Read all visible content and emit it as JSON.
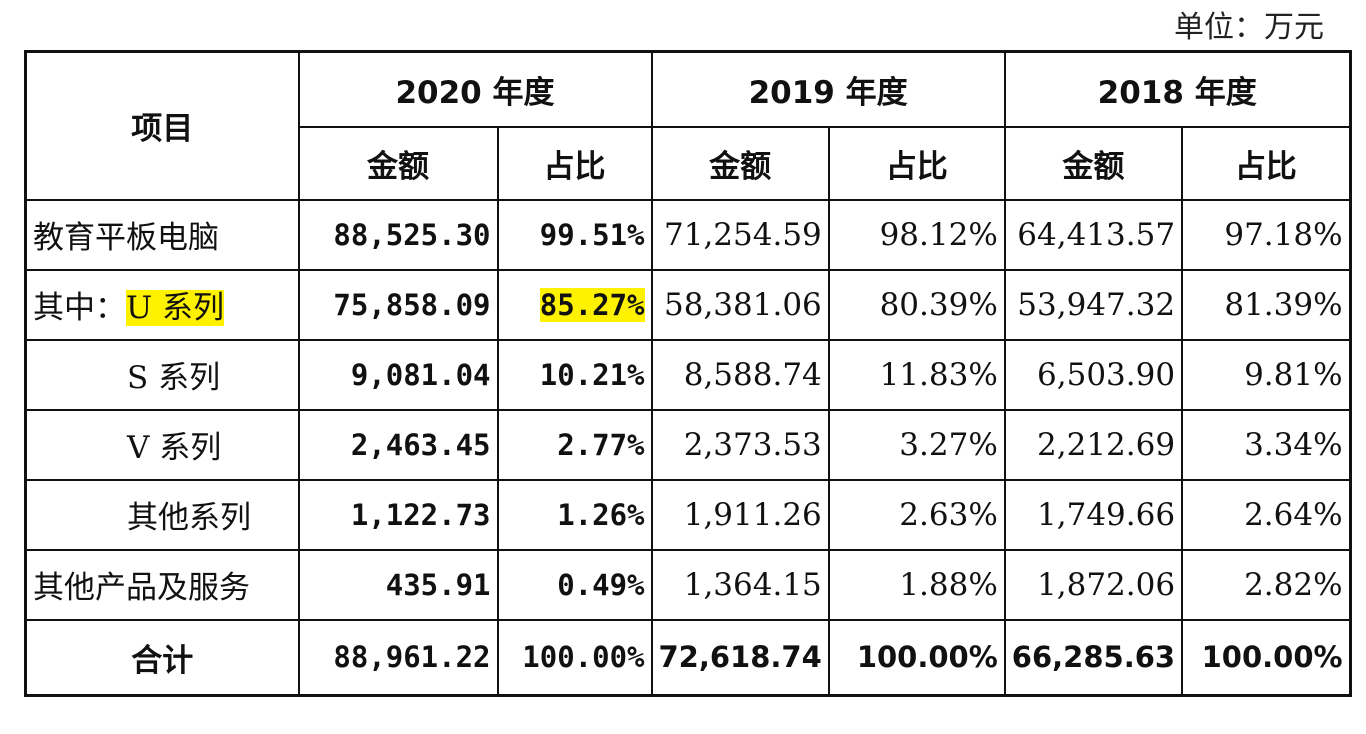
{
  "unit_label": "单位：万元",
  "header": {
    "item": "项目",
    "years": [
      "2020 年度",
      "2019 年度",
      "2018 年度"
    ],
    "amount": "金额",
    "ratio": "占比"
  },
  "rows": [
    {
      "name": "教育平板电脑",
      "v2020": "88,525.30",
      "p2020": "99.51%",
      "v2019": "71,254.59",
      "p2019": "98.12%",
      "v2018": "64,413.57",
      "p2018": "97.18%"
    },
    {
      "name_prefix": "其中：",
      "name": "U 系列",
      "v2020": "75,858.09",
      "p2020": "85.27%",
      "v2019": "58,381.06",
      "p2019": "80.39%",
      "v2018": "53,947.32",
      "p2018": "81.39%"
    },
    {
      "name": "S 系列",
      "v2020": "9,081.04",
      "p2020": "10.21%",
      "v2019": "8,588.74",
      "p2019": "11.83%",
      "v2018": "6,503.90",
      "p2018": "9.81%"
    },
    {
      "name": "V 系列",
      "v2020": "2,463.45",
      "p2020": "2.77%",
      "v2019": "2,373.53",
      "p2019": "3.27%",
      "v2018": "2,212.69",
      "p2018": "3.34%"
    },
    {
      "name": "其他系列",
      "v2020": "1,122.73",
      "p2020": "1.26%",
      "v2019": "1,911.26",
      "p2019": "2.63%",
      "v2018": "1,749.66",
      "p2018": "2.64%"
    },
    {
      "name": "其他产品及服务",
      "v2020": "435.91",
      "p2020": "0.49%",
      "v2019": "1,364.15",
      "p2019": "1.88%",
      "v2018": "1,872.06",
      "p2018": "2.82%"
    }
  ],
  "total": {
    "name": "合计",
    "v2020": "88,961.22",
    "p2020": "100.00%",
    "v2019": "72,618.74",
    "p2019": "100.00%",
    "v2018": "66,285.63",
    "p2018": "100.00%"
  },
  "colors": {
    "highlight": "#fff200",
    "border": "#111111"
  }
}
